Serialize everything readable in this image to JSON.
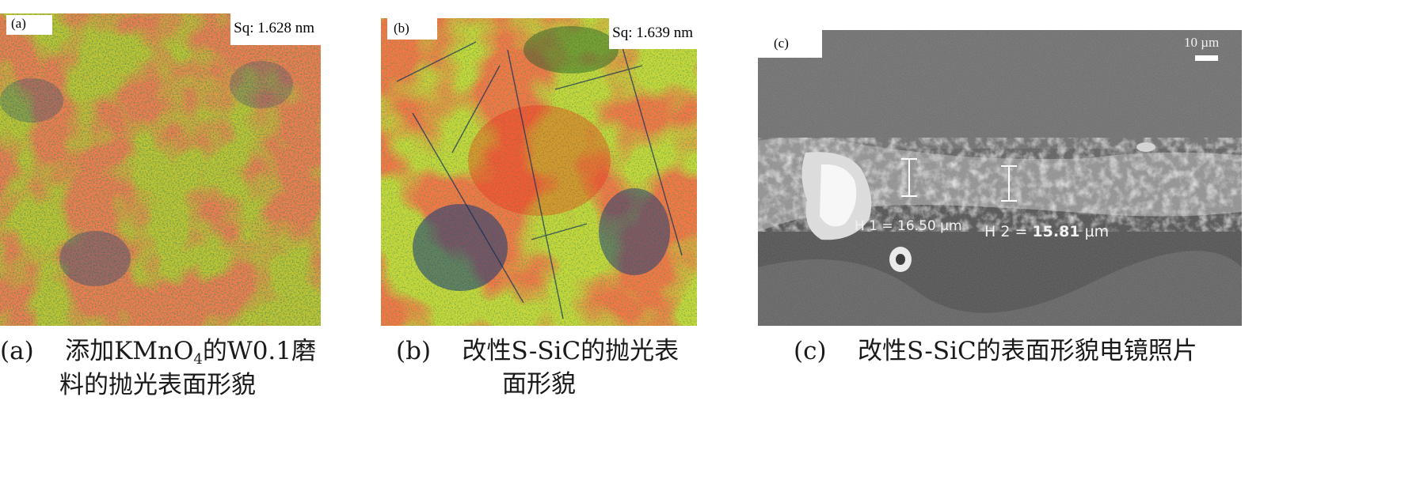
{
  "panels": [
    {
      "tag": "(a)",
      "roughness": "Sq: 1.628 nm",
      "caption_prefix": "(a)",
      "caption_line1_a": "添加KMnO",
      "caption_line1_sub": "4",
      "caption_line1_b": "的W0.1磨",
      "caption_line2": "料的抛光表面形貌"
    },
    {
      "tag": "(b)",
      "roughness": "Sq: 1.639 nm",
      "caption_prefix": "(b)",
      "caption_line1": "改性S-SiC的抛光表",
      "caption_line2": "面形貌"
    },
    {
      "tag": "(c)",
      "scale_bar": "10 µm",
      "h1_label": "H 1 = 16.50 µm",
      "h2_prefix": "H 2 = ",
      "h2_value": "15.81",
      "h2_unit": " µm",
      "caption_prefix": "(c)",
      "caption_line1": "改性S-SiC的表面形貌电镜照片"
    }
  ],
  "colors": {
    "high": "#e8271a",
    "mid": "#c9d83a",
    "low": "#1d6a2a",
    "deep": "#0a1f7a",
    "sem_bg": "#5b5b5b"
  }
}
